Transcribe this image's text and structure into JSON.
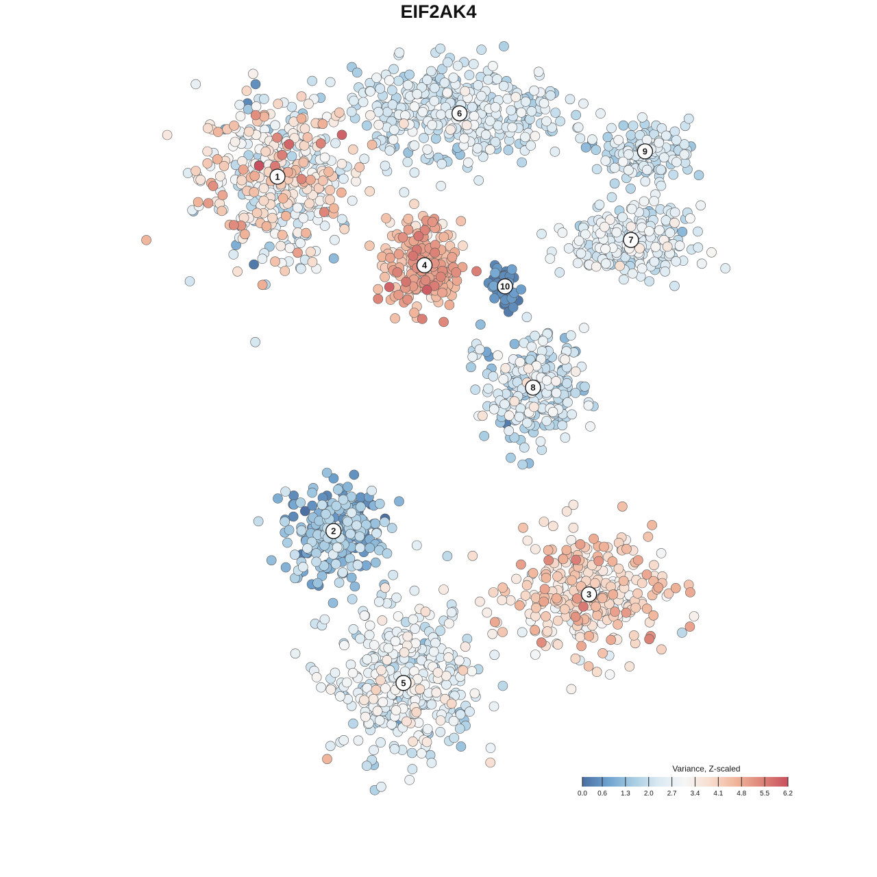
{
  "chart_data": {
    "type": "scatter",
    "title": "EIF2AK4",
    "xlabel": "",
    "ylabel": "",
    "axes_visible": false,
    "grid": false,
    "color_scale": {
      "title": "Variance, Z-scaled",
      "min": 0.0,
      "max": 6.2,
      "ticks": [
        "0.0",
        "0.6",
        "1.3",
        "2.0",
        "2.7",
        "3.4",
        "4.1",
        "4.8",
        "5.5",
        "6.2"
      ],
      "colors": [
        "#4a6fa0",
        "#6fa2cf",
        "#a8cde3",
        "#dbeaf3",
        "#f6f6f6",
        "#f7dccd",
        "#f0b49a",
        "#dd8478",
        "#c8505f"
      ],
      "placement": "bottom-right"
    },
    "clusters": [
      {
        "label": "1",
        "x": -4.6,
        "y": 4.3,
        "mean": 3.1,
        "spread": 1.7,
        "n": 420
      },
      {
        "label": "2",
        "x": -3.0,
        "y": -4.1,
        "mean": 1.1,
        "spread": 1.0,
        "n": 240
      },
      {
        "label": "3",
        "x": 4.3,
        "y": -5.6,
        "mean": 3.8,
        "spread": 1.1,
        "n": 320
      },
      {
        "label": "4",
        "x": -0.4,
        "y": 2.2,
        "mean": 4.5,
        "spread": 0.9,
        "n": 230
      },
      {
        "label": "5",
        "x": -1.0,
        "y": -7.7,
        "mean": 2.5,
        "spread": 1.0,
        "n": 360
      },
      {
        "label": "6",
        "x": 0.6,
        "y": 5.8,
        "mean": 2.2,
        "spread": 0.8,
        "n": 380
      },
      {
        "label": "7",
        "x": 5.5,
        "y": 2.8,
        "mean": 2.3,
        "spread": 0.8,
        "n": 260
      },
      {
        "label": "8",
        "x": 2.7,
        "y": -0.7,
        "mean": 2.0,
        "spread": 1.1,
        "n": 240
      },
      {
        "label": "9",
        "x": 5.9,
        "y": 4.9,
        "mean": 2.1,
        "spread": 0.7,
        "n": 130
      },
      {
        "label": "10",
        "x": 1.9,
        "y": 1.7,
        "mean": 0.4,
        "spread": 0.4,
        "n": 55
      }
    ],
    "xlim": [
      -9.2,
      9.2
    ],
    "ylim": [
      -11.0,
      8.0
    ]
  }
}
